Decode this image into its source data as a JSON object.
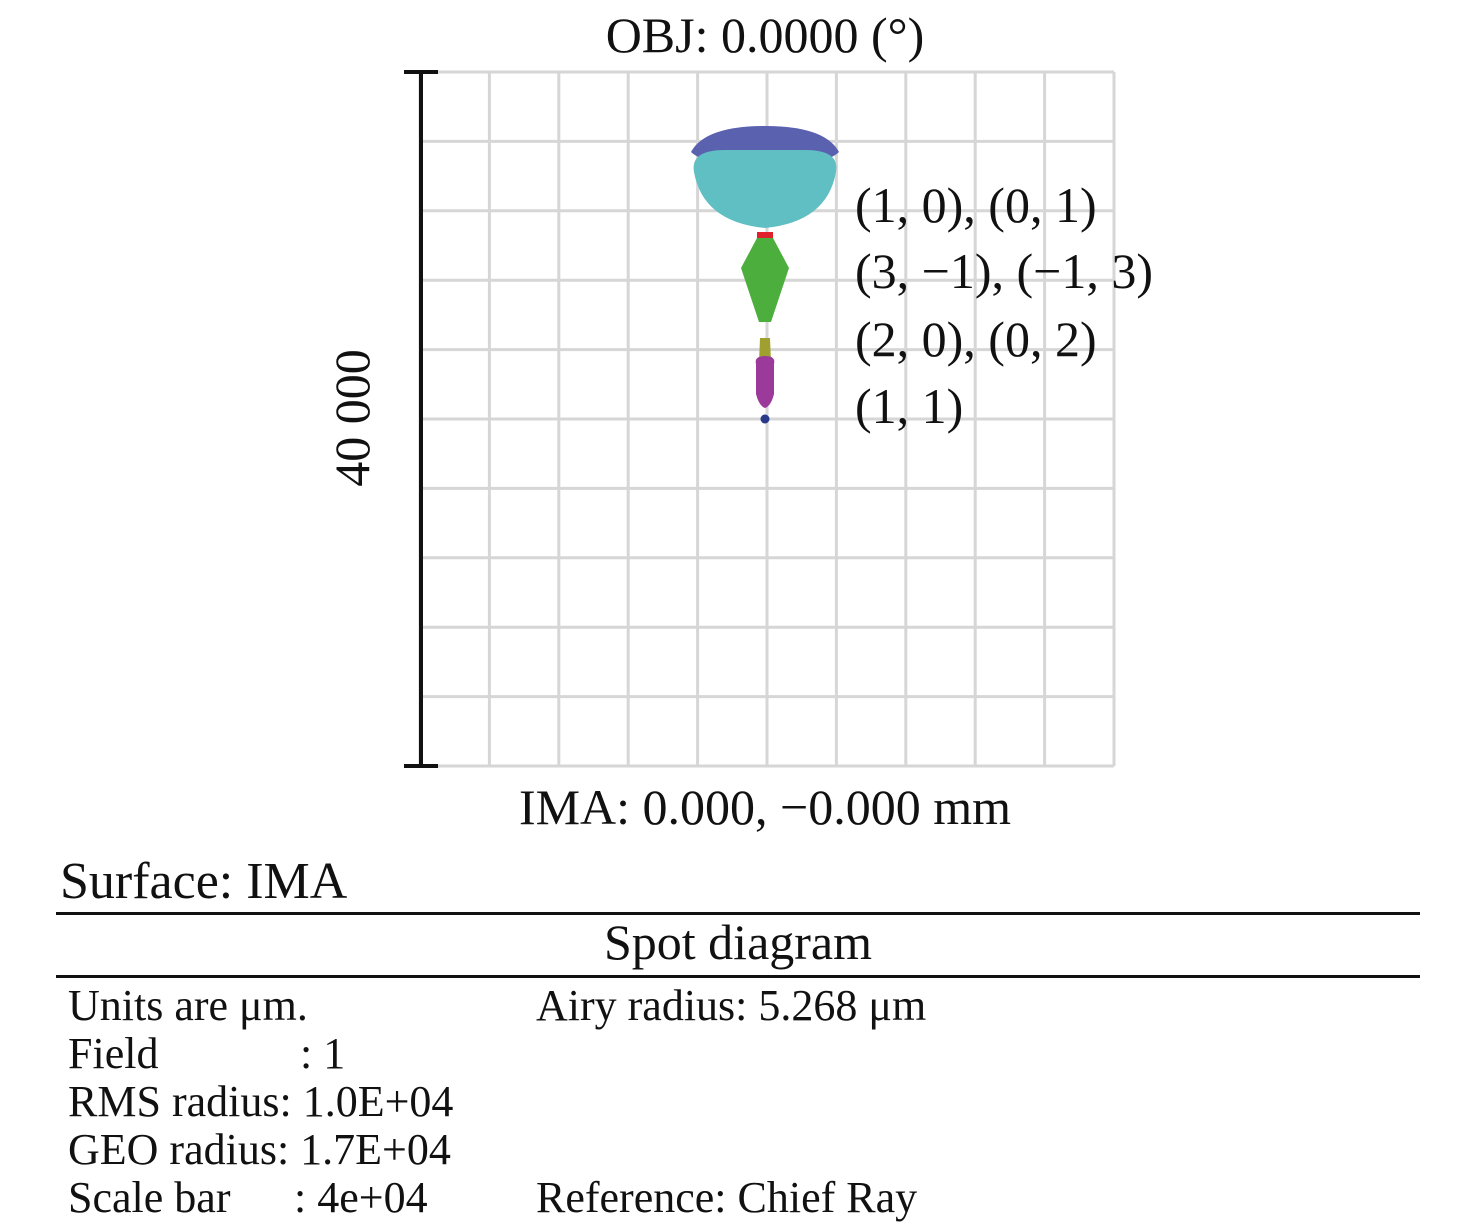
{
  "chart_data": {
    "type": "scatter",
    "title": "OBJ: 0.0000 (°)",
    "xlabel": "IMA: 0.000, −0.000 mm",
    "scale_bar_label": "40 000",
    "grid": true,
    "grid_divisions": 10,
    "series": [
      {
        "name": "(1, 0), (0, 1)",
        "shape": "cap",
        "color": "#5a62b0"
      },
      {
        "name": "(1, 0), (0, 1)",
        "shape": "bowl",
        "color": "#5fbfc2"
      },
      {
        "name": "(3, −1), (−1, 3)",
        "shape": "bar",
        "color": "#e0202a"
      },
      {
        "name": "(3, −1), (−1, 3)",
        "shape": "diamond",
        "color": "#4cae3c"
      },
      {
        "name": "(2, 0), (0, 2)",
        "shape": "small-bar",
        "color": "#a0a030"
      },
      {
        "name": "(2, 0), (0, 2)",
        "shape": "capsule",
        "color": "#9b3a9a"
      },
      {
        "name": "(1, 1)",
        "shape": "dot",
        "color": "#2a3a8a"
      }
    ],
    "annotations": [
      "(1, 0), (0, 1)",
      "(3, −1), (−1, 3)",
      "(2, 0), (0, 2)",
      "(1, 1)"
    ]
  },
  "report": {
    "surface": "Surface: IMA",
    "header": "Spot diagram",
    "units": "Units are μm.",
    "airy": "Airy radius: 5.268 μm",
    "field_label": "Field",
    "field_value": ": 1",
    "rms": "RMS radius: 1.0E+04",
    "geo": "GEO radius: 1.7E+04",
    "scale_label": "Scale bar",
    "scale_value": ": 4e+04",
    "reference": "Reference: Chief Ray"
  }
}
